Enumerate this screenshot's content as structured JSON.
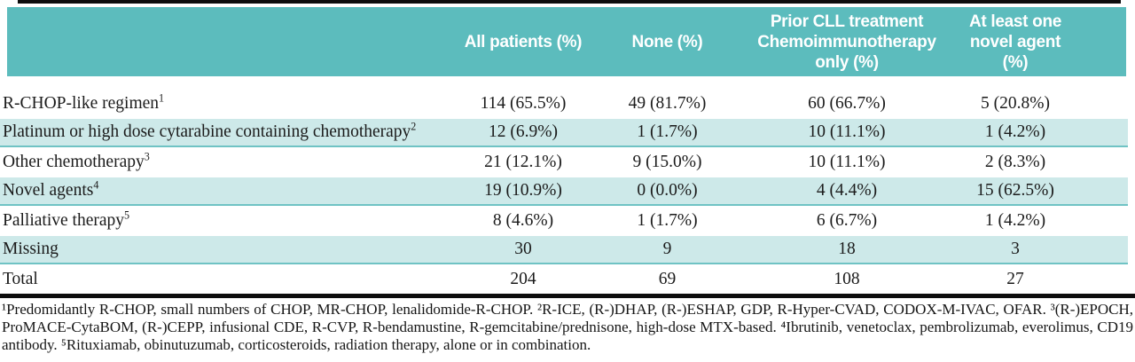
{
  "colors": {
    "header_bg": "#5cbcbd",
    "shaded_bg": "#cde9e9",
    "shaded_border": "#6fc3c4",
    "rule_black": "#0d0d0d",
    "header_text": "#ffffff",
    "body_text": "#1b1b1b"
  },
  "table": {
    "header": {
      "all_patients": "All patients (%)",
      "none": "None (%)",
      "prior_cll_line": "Prior CLL treatment",
      "chemo_line": "Chemoimmunotherapy",
      "only_line": "only (%)",
      "at_least_line": "At least one",
      "novel_line": "novel agent (%)"
    },
    "rows": [
      {
        "label": "R-CHOP-like regimen",
        "sup": "1",
        "values": [
          "114 (65.5%)",
          "49 (81.7%)",
          "60 (66.7%)",
          "5 (20.8%)"
        ]
      },
      {
        "label": "Platinum or high dose cytarabine containing chemotherapy",
        "sup": "2",
        "values": [
          "12 (6.9%)",
          "1 (1.7%)",
          "10 (11.1%)",
          "1 (4.2%)"
        ]
      },
      {
        "label": "Other chemotherapy",
        "sup": "3",
        "values": [
          "21 (12.1%)",
          "9 (15.0%)",
          "10 (11.1%)",
          "2 (8.3%)"
        ]
      },
      {
        "label": "Novel agents",
        "sup": "4",
        "values": [
          "19 (10.9%)",
          "0 (0.0%)",
          "4 (4.4%)",
          "15 (62.5%)"
        ]
      },
      {
        "label": "Palliative therapy",
        "sup": "5",
        "values": [
          "8 (4.6%)",
          "1 (1.7%)",
          "6 (6.7%)",
          "1 (4.2%)"
        ]
      },
      {
        "label": "Missing",
        "sup": "",
        "values": [
          "30",
          "9",
          "18",
          "3"
        ]
      },
      {
        "label": "Total",
        "sup": "",
        "values": [
          "204",
          "69",
          "108",
          "27"
        ]
      }
    ]
  },
  "footnotes": {
    "text": "¹Predomidantly R-CHOP, small numbers of CHOP, MR-CHOP, lenalidomide-R-CHOP. ²R-ICE, (R-)DHAP, (R-)ESHAP, GDP, R-Hyper-CVAD, CODOX-M-IVAC, OFAR. ³(R-)EPOCH, ProMACE-CytaBOM, (R-)CEPP, infusional CDE, R-CVP, R-bendamustine, R-gemcitabine/prednisone, high-dose MTX-based. ⁴Ibrutinib, venetoclax, pembrolizumab, everolimus, CD19 antibody. ⁵Rituxiamab, obinutuzumab, corticosteroids, radiation therapy, alone or in combination."
  }
}
